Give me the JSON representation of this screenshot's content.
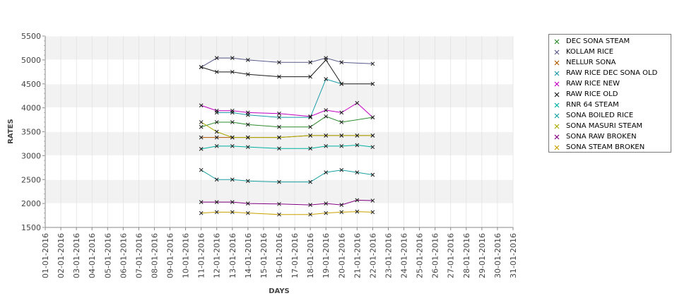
{
  "chart_data": {
    "type": "line",
    "title": "",
    "xlabel": "DAYS",
    "ylabel": "RATES",
    "ylim": [
      1500,
      5500
    ],
    "yticks": [
      "1500",
      "2000",
      "2500",
      "3000",
      "3500",
      "4000",
      "4500",
      "5000",
      "5500"
    ],
    "grid": true,
    "legend_position": "right",
    "categories": [
      "01-01-2016",
      "02-01-2016",
      "03-01-2016",
      "04-01-2016",
      "05-01-2016",
      "06-01-2016",
      "07-01-2016",
      "08-01-2016",
      "09-01-2016",
      "10-01-2016",
      "11-01-2016",
      "12-01-2016",
      "13-01-2016",
      "14-01-2016",
      "15-01-2016",
      "16-01-2016",
      "17-01-2016",
      "18-01-2016",
      "19-01-2016",
      "20-01-2016",
      "21-01-2016",
      "22-01-2016",
      "23-01-2016",
      "24-01-2016",
      "25-01-2016",
      "26-01-2016",
      "27-01-2016",
      "28-01-2016",
      "29-01-2016",
      "30-01-2016",
      "31-01-2016"
    ],
    "series": [
      {
        "name": "DEC SONA STEAM",
        "color": "#2e8b2e",
        "values": [
          null,
          null,
          null,
          null,
          null,
          null,
          null,
          null,
          null,
          null,
          3600,
          3700,
          3700,
          3650,
          null,
          3600,
          null,
          3600,
          3820,
          3700,
          null,
          3800,
          null,
          null,
          null,
          null,
          null,
          null,
          null,
          null,
          null
        ]
      },
      {
        "name": "KOLLAM RICE",
        "color": "#5a5a8a",
        "values": [
          null,
          null,
          null,
          null,
          null,
          null,
          null,
          null,
          null,
          null,
          4850,
          5040,
          5040,
          5000,
          null,
          4950,
          null,
          4950,
          5040,
          4950,
          null,
          4920,
          null,
          null,
          null,
          null,
          null,
          null,
          null,
          null,
          null
        ]
      },
      {
        "name": "NELLUR SONA",
        "color": "#b05a00",
        "values": [
          null,
          null,
          null,
          null,
          null,
          null,
          null,
          null,
          null,
          null,
          3380,
          3380,
          3380,
          3380,
          null,
          3380,
          null,
          3420,
          3420,
          3420,
          3420,
          3420,
          null,
          null,
          null,
          null,
          null,
          null,
          null,
          null,
          null
        ]
      },
      {
        "name": "RAW RICE DEC SONA OLD",
        "color": "#1a9aa8",
        "values": [
          null,
          null,
          null,
          null,
          null,
          null,
          null,
          null,
          null,
          null,
          null,
          3900,
          3900,
          3850,
          null,
          3800,
          null,
          3800,
          4600,
          4500,
          null,
          null,
          null,
          null,
          null,
          null,
          null,
          null,
          null,
          null,
          null
        ]
      },
      {
        "name": "RAW RICE NEW",
        "color": "#c000c0",
        "values": [
          null,
          null,
          null,
          null,
          null,
          null,
          null,
          null,
          null,
          null,
          4050,
          3940,
          3940,
          3900,
          null,
          3880,
          null,
          3820,
          3950,
          3900,
          4100,
          3800,
          null,
          null,
          null,
          null,
          null,
          null,
          null,
          null,
          null
        ]
      },
      {
        "name": "RAW RICE OLD",
        "color": "#1a1a1a",
        "values": [
          null,
          null,
          null,
          null,
          null,
          null,
          null,
          null,
          null,
          null,
          4850,
          4750,
          4750,
          4700,
          null,
          4650,
          null,
          4650,
          5000,
          4500,
          null,
          4500,
          null,
          null,
          null,
          null,
          null,
          null,
          null,
          null,
          null
        ]
      },
      {
        "name": "RNR 64 STEAM",
        "color": "#00b0a0",
        "values": [
          null,
          null,
          null,
          null,
          null,
          null,
          null,
          null,
          null,
          null,
          3140,
          3200,
          3200,
          3180,
          null,
          3150,
          null,
          3150,
          3200,
          3200,
          3220,
          3180,
          null,
          null,
          null,
          null,
          null,
          null,
          null,
          null,
          null
        ]
      },
      {
        "name": "SONA BOILED RICE",
        "color": "#1aa0a0",
        "values": [
          null,
          null,
          null,
          null,
          null,
          null,
          null,
          null,
          null,
          null,
          2700,
          2500,
          2500,
          2470,
          null,
          2450,
          null,
          2450,
          2650,
          2700,
          2650,
          2600,
          null,
          null,
          null,
          null,
          null,
          null,
          null,
          null,
          null
        ]
      },
      {
        "name": "SONA MASURI STEAM",
        "color": "#aaaa00",
        "values": [
          null,
          null,
          null,
          null,
          null,
          null,
          null,
          null,
          null,
          null,
          3700,
          3500,
          3380,
          3380,
          null,
          3380,
          null,
          3420,
          3420,
          3420,
          3420,
          3420,
          null,
          null,
          null,
          null,
          null,
          null,
          null,
          null,
          null
        ]
      },
      {
        "name": "SONA RAW BROKEN",
        "color": "#800080",
        "values": [
          null,
          null,
          null,
          null,
          null,
          null,
          null,
          null,
          null,
          null,
          2030,
          2030,
          2030,
          2000,
          null,
          1990,
          null,
          1970,
          2000,
          1970,
          2070,
          2060,
          null,
          null,
          null,
          null,
          null,
          null,
          null,
          null,
          null
        ]
      },
      {
        "name": "SONA STEAM BROKEN",
        "color": "#c8a000",
        "values": [
          null,
          null,
          null,
          null,
          null,
          null,
          null,
          null,
          null,
          null,
          1800,
          1820,
          1820,
          1800,
          null,
          1770,
          null,
          1770,
          1800,
          1820,
          1830,
          1820,
          null,
          null,
          null,
          null,
          null,
          null,
          null,
          null,
          null
        ]
      }
    ]
  }
}
